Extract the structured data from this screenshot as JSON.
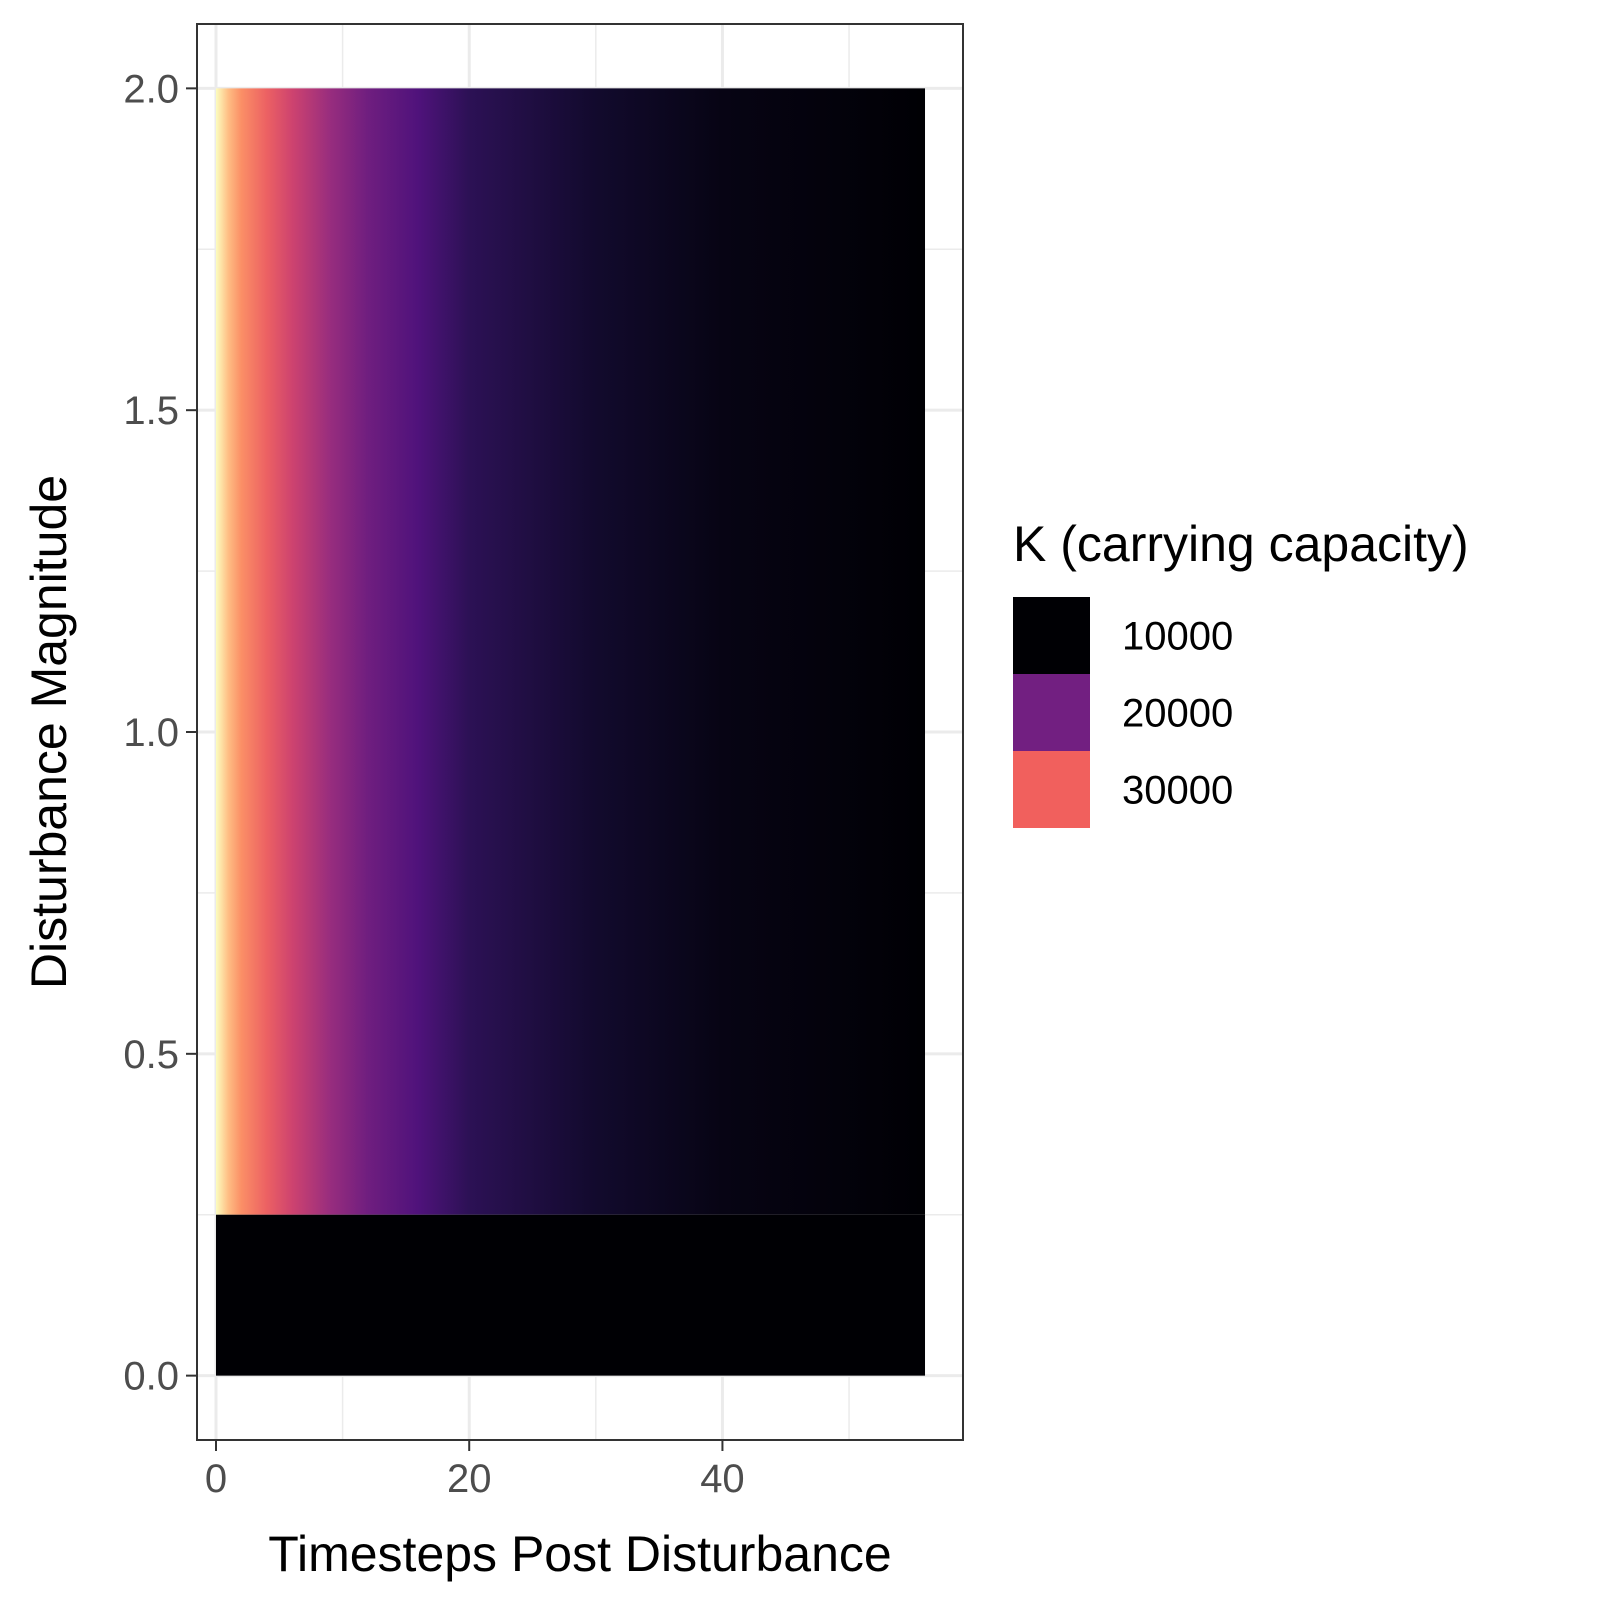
{
  "chart_data": {
    "type": "heatmap",
    "xlabel": "Timesteps Post Disturbance",
    "ylabel": "Disturbance Magnitude",
    "xlim": [
      -1.5,
      59
    ],
    "ylim": [
      -0.1,
      2.1
    ],
    "x_ticks": [
      0,
      20,
      40
    ],
    "x_tick_labels": [
      "0",
      "20",
      "40"
    ],
    "y_ticks": [
      0,
      0.5,
      1,
      1.5,
      2
    ],
    "y_tick_labels": [
      "0.0",
      "0.5",
      "1.0",
      "1.5",
      "2.0"
    ],
    "grid": true,
    "x_range": [
      0,
      56
    ],
    "y_range": [
      0,
      2
    ],
    "threshold_magnitude": 0.25,
    "below_threshold_K": 10000,
    "K_profile_above_threshold": [
      {
        "timestep": 0,
        "K": 40000
      },
      {
        "timestep": 1,
        "K": 36000
      },
      {
        "timestep": 2,
        "K": 33000
      },
      {
        "timestep": 4,
        "K": 30000
      },
      {
        "timestep": 6,
        "K": 27000
      },
      {
        "timestep": 9,
        "K": 23000
      },
      {
        "timestep": 12,
        "K": 20000
      },
      {
        "timestep": 16,
        "K": 17500
      },
      {
        "timestep": 20,
        "K": 15000
      },
      {
        "timestep": 30,
        "K": 12500
      },
      {
        "timestep": 40,
        "K": 11000
      },
      {
        "timestep": 56,
        "K": 10000
      }
    ],
    "legend": {
      "title": "K (carrying capacity)",
      "placement": "right",
      "entries": [
        {
          "label": "10000",
          "color": "#000004"
        },
        {
          "label": "20000",
          "color": "#721F81"
        },
        {
          "label": "30000",
          "color": "#F1605D"
        }
      ]
    },
    "colorscale": "magma"
  }
}
